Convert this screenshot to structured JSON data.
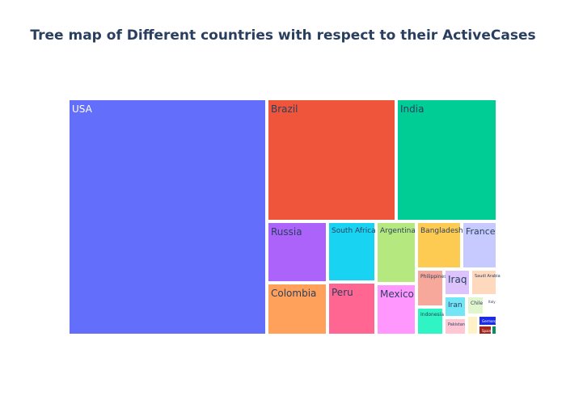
{
  "chart_data": {
    "type": "treemap",
    "title": "Tree map of Different countries with respect to their ActiveCases",
    "tiles": [
      {
        "label": "USA",
        "color": "#636efa",
        "light": true
      },
      {
        "label": "Brazil",
        "color": "#ef553b"
      },
      {
        "label": "India",
        "color": "#00cc96"
      },
      {
        "label": "Russia",
        "color": "#ab63fa"
      },
      {
        "label": "South Africa",
        "color": "#19d3f3"
      },
      {
        "label": "Argentina",
        "color": "#b6e880"
      },
      {
        "label": "Bangladesh",
        "color": "#fecb52"
      },
      {
        "label": "France",
        "color": "#c6caff"
      },
      {
        "label": "Colombia",
        "color": "#ffa15a"
      },
      {
        "label": "Peru",
        "color": "#ff6692"
      },
      {
        "label": "Mexico",
        "color": "#ff97ff"
      },
      {
        "label": "Philippines",
        "color": "#f7a89b"
      },
      {
        "label": "Indonesia",
        "color": "#2ef5c3"
      },
      {
        "label": "Iraq",
        "color": "#dcc3fc"
      },
      {
        "label": "Saudi Arabia",
        "color": "#ffd9be"
      },
      {
        "label": "Iran",
        "color": "#72e5f7"
      },
      {
        "label": "Chile",
        "color": "#e2f6cd"
      },
      {
        "label": "Italy",
        "color": "#ffffff"
      },
      {
        "label": "Pakistan",
        "color": "#ffc6d3"
      },
      {
        "label": "",
        "color": "#fff1c8"
      },
      {
        "label": "Germany",
        "color": "#1d2be8",
        "light": true
      },
      {
        "label": "Spain",
        "color": "#a4241c",
        "light": true
      },
      {
        "label": "",
        "color": "#0b8d64"
      }
    ]
  }
}
